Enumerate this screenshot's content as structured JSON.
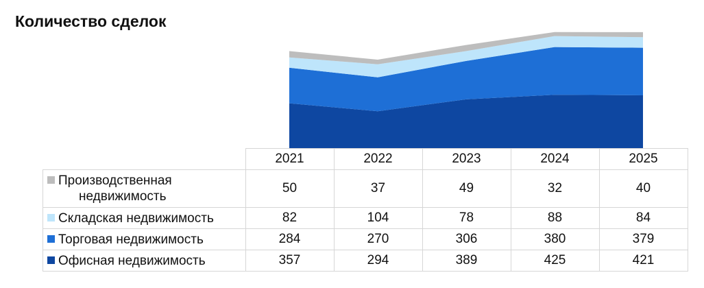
{
  "chart_data": {
    "type": "area",
    "stacked": true,
    "title": "Количество сделок",
    "categories": [
      "2021",
      "2022",
      "2023",
      "2024",
      "2025"
    ],
    "ylim": [
      0,
      1000
    ],
    "grid": false,
    "legend": "table-left",
    "series": [
      {
        "name": "Офисная недвижимость",
        "color": "#0e47a1",
        "values": [
          357,
          294,
          389,
          425,
          421
        ]
      },
      {
        "name": "Торговая недвижимость",
        "color": "#1e6fd6",
        "values": [
          284,
          270,
          306,
          380,
          379
        ]
      },
      {
        "name": "Складская недвижимость",
        "color": "#bee5fb",
        "values": [
          82,
          104,
          78,
          88,
          84
        ]
      },
      {
        "name": "Производственная недвижимость",
        "color": "#bdbdbd",
        "values": [
          50,
          37,
          49,
          32,
          40
        ],
        "label_lines": [
          "Производственная",
          "недвижимость"
        ]
      }
    ]
  }
}
